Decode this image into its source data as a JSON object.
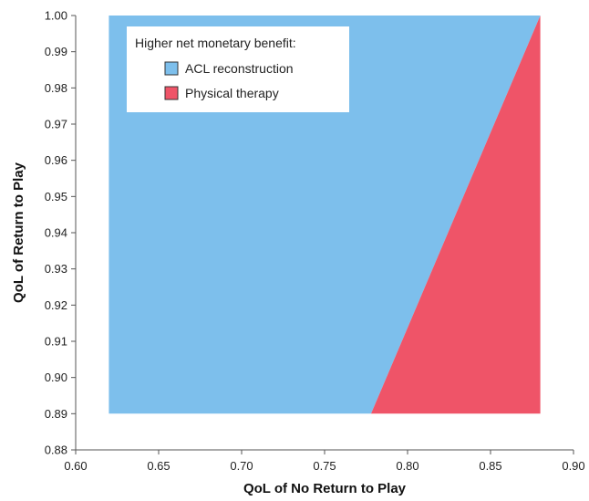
{
  "chart_data": {
    "type": "area",
    "xlabel": "QoL of No Return to Play",
    "ylabel": "QoL of Return to Play",
    "xlim": [
      0.6,
      0.9
    ],
    "ylim": [
      0.88,
      1.0
    ],
    "x_ticks": [
      "0.60",
      "0.65",
      "0.70",
      "0.75",
      "0.80",
      "0.85",
      "0.90"
    ],
    "y_ticks": [
      "0.88",
      "0.89",
      "0.90",
      "0.91",
      "0.92",
      "0.93",
      "0.94",
      "0.95",
      "0.96",
      "0.97",
      "0.98",
      "0.99",
      "1.00"
    ],
    "grid": false,
    "legend": {
      "title": "Higher net monetary benefit:",
      "placement": "top-left"
    },
    "regions": [
      {
        "name": "ACL reconstruction",
        "color": "#7dbfec",
        "polygon": [
          [
            0.62,
            0.89
          ],
          [
            0.62,
            1.0
          ],
          [
            0.88,
            1.0
          ],
          [
            0.778,
            0.89
          ]
        ]
      },
      {
        "name": "Physical therapy",
        "color": "#ef5468",
        "polygon": [
          [
            0.778,
            0.89
          ],
          [
            0.88,
            1.0
          ],
          [
            0.88,
            0.89
          ]
        ]
      }
    ]
  }
}
